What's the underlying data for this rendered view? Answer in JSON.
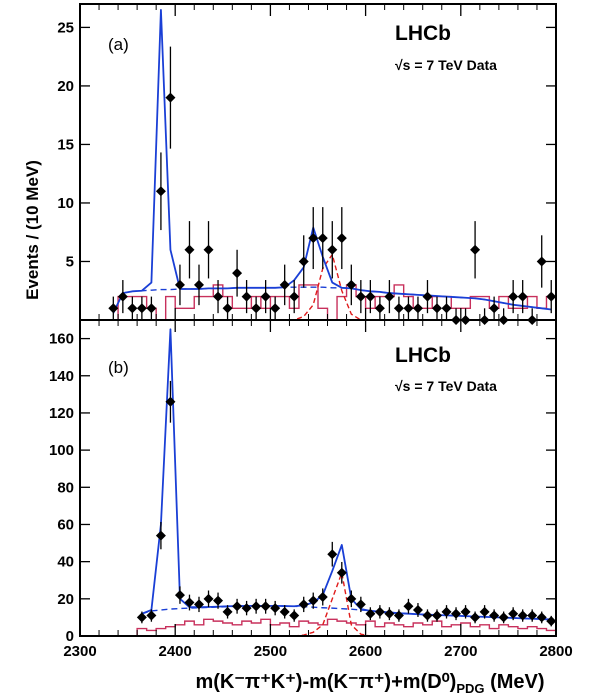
{
  "chart_data": [
    {
      "type": "scatter",
      "panel_label": "(a)",
      "experiment": "LHCb",
      "annotation": "√s = 7 TeV Data",
      "xlabel": "m(K⁻π⁺K⁺)-m(K⁻π⁺)+m(D⁰)PDG (MeV)",
      "ylabel": "Events / (10 MeV)",
      "xlim": [
        2300,
        2800
      ],
      "ylim": [
        0,
        27
      ],
      "x_ticks": [
        2300,
        2400,
        2500,
        2600,
        2700,
        2800
      ],
      "y_ticks": [
        5,
        10,
        15,
        20,
        25
      ],
      "x": [
        2335,
        2345,
        2355,
        2365,
        2375,
        2385,
        2395,
        2405,
        2415,
        2425,
        2435,
        2445,
        2455,
        2465,
        2475,
        2485,
        2495,
        2505,
        2515,
        2525,
        2535,
        2545,
        2555,
        2565,
        2575,
        2585,
        2595,
        2605,
        2615,
        2625,
        2635,
        2645,
        2655,
        2665,
        2675,
        2685,
        2695,
        2705,
        2715,
        2725,
        2735,
        2745,
        2755,
        2765,
        2775,
        2785,
        2795
      ],
      "data": [
        1,
        2,
        1,
        1,
        1,
        11,
        19,
        3,
        6,
        3,
        6,
        2,
        1,
        4,
        2,
        1,
        2,
        1,
        3,
        2,
        5,
        7,
        7,
        6,
        7,
        3,
        2,
        2,
        1,
        2,
        1,
        1,
        1,
        2,
        1,
        1,
        0,
        0,
        6,
        0,
        1,
        0,
        2,
        2,
        0,
        5,
        2
      ],
      "fit_total": [
        0.6,
        2.3,
        2.45,
        2.5,
        3.2,
        26.5,
        6,
        2.65,
        2.65,
        2.65,
        2.7,
        2.7,
        2.7,
        2.75,
        2.75,
        2.75,
        2.75,
        2.75,
        2.8,
        3.4,
        4.5,
        7.9,
        5.4,
        3.2,
        2.75,
        2.7,
        2.55,
        2.45,
        2.4,
        2.3,
        2.25,
        2.2,
        2.15,
        2.1,
        2.05,
        2.0,
        1.95,
        1.9,
        1.85,
        1.75,
        1.6,
        1.45,
        1.3,
        1.2,
        1.1,
        1.0,
        0.9
      ],
      "fit_background": [
        0.6,
        2.3,
        2.45,
        2.5,
        2.55,
        2.6,
        2.6,
        2.65,
        2.65,
        2.65,
        2.7,
        2.7,
        2.7,
        2.75,
        2.75,
        2.75,
        2.75,
        2.75,
        2.8,
        2.8,
        2.8,
        2.8,
        2.8,
        2.75,
        2.75,
        2.7,
        2.55,
        2.45,
        2.4,
        2.3,
        2.25,
        2.2,
        2.15,
        2.1,
        2.05,
        2.0,
        1.95,
        1.9,
        1.85,
        1.75,
        1.6,
        1.45,
        1.3,
        1.2,
        1.1,
        1.0,
        0.9
      ],
      "signal_2573": [
        0,
        0,
        0,
        0,
        0,
        0,
        0,
        0,
        0,
        0,
        0,
        0,
        0,
        0,
        0,
        0,
        0,
        0,
        0,
        0,
        0.3,
        1.3,
        4.4,
        5.6,
        2.5,
        0.5,
        0,
        0,
        0,
        0,
        0,
        0,
        0,
        0,
        0,
        0,
        0,
        0,
        0,
        0,
        0,
        0,
        0,
        0,
        0,
        0,
        0
      ],
      "sideband_hist": [
        0,
        2,
        2,
        2,
        1,
        0,
        2,
        1,
        1,
        2,
        2,
        3,
        2,
        1,
        1,
        2,
        1,
        2,
        2,
        1,
        3,
        3,
        1,
        0,
        2,
        3,
        2,
        1,
        2,
        2,
        3,
        2,
        1,
        1,
        2,
        2,
        1,
        1,
        2,
        2,
        1,
        2,
        1,
        1,
        2,
        1,
        2
      ],
      "colors": {
        "data": "#000000",
        "fit": "#1a3fd6",
        "signal": "#e01b1b",
        "sideband": "#c8305c"
      }
    },
    {
      "type": "scatter",
      "panel_label": "(b)",
      "experiment": "LHCb",
      "annotation": "√s = 7 TeV Data",
      "xlabel": "m(K⁻π⁺K⁺)-m(K⁻π⁺)+m(D⁰)PDG (MeV)",
      "ylabel": "Events / (10 MeV)",
      "xlim": [
        2300,
        2800
      ],
      "ylim": [
        0,
        170
      ],
      "x_ticks": [
        2300,
        2400,
        2500,
        2600,
        2700,
        2800
      ],
      "y_ticks": [
        0,
        20,
        40,
        60,
        80,
        100,
        120,
        140,
        160
      ],
      "x": [
        2365,
        2375,
        2385,
        2395,
        2405,
        2415,
        2425,
        2435,
        2445,
        2455,
        2465,
        2475,
        2485,
        2495,
        2505,
        2515,
        2525,
        2535,
        2545,
        2555,
        2565,
        2575,
        2585,
        2595,
        2605,
        2615,
        2625,
        2635,
        2645,
        2655,
        2665,
        2675,
        2685,
        2695,
        2705,
        2715,
        2725,
        2735,
        2745,
        2755,
        2765,
        2775,
        2785,
        2795
      ],
      "data": [
        10,
        11,
        54,
        126,
        22,
        18,
        17,
        20,
        19,
        13,
        16,
        15,
        16,
        16,
        15,
        13,
        11,
        17,
        19,
        21,
        44,
        34,
        20,
        17,
        12,
        13,
        12,
        11,
        16,
        14,
        11,
        11,
        13,
        12,
        13,
        10,
        13,
        11,
        10,
        12,
        11,
        11,
        10,
        8
      ],
      "fit_total": [
        12,
        14,
        60,
        165,
        20,
        15.5,
        15.5,
        15.6,
        15.8,
        16,
        16.1,
        16.2,
        16.2,
        16.2,
        16.2,
        16.1,
        16,
        16.5,
        18,
        22,
        35,
        49,
        20,
        14.5,
        13.5,
        13,
        12.6,
        12.2,
        12,
        11.7,
        11.5,
        11.3,
        11.1,
        10.9,
        10.7,
        10.5,
        10.3,
        10.1,
        9.9,
        9.7,
        9.5,
        9.3,
        9.1,
        8.9
      ],
      "fit_background": [
        12,
        13.5,
        14,
        14.5,
        14.8,
        15,
        15.2,
        15.4,
        15.6,
        15.8,
        16,
        16.1,
        16.2,
        16.2,
        16.2,
        16.1,
        16,
        15.8,
        15.5,
        15.2,
        15,
        14.7,
        14.4,
        14,
        13.6,
        13.2,
        12.8,
        12.4,
        12,
        11.7,
        11.5,
        11.3,
        11.1,
        10.9,
        10.7,
        10.5,
        10.3,
        10.1,
        9.9,
        9.7,
        9.5,
        9.3,
        9.1,
        8.9
      ],
      "signal_2573": [
        0,
        0,
        0,
        0,
        0,
        0,
        0,
        0,
        0,
        0,
        0,
        0,
        0,
        0,
        0,
        0,
        0,
        0.5,
        2,
        6,
        20,
        34,
        6,
        1,
        0,
        0,
        0,
        0,
        0,
        0,
        0,
        0,
        0,
        0,
        0,
        0,
        0,
        0,
        0,
        0,
        0,
        0,
        0,
        0
      ],
      "sideband_hist": [
        4,
        3,
        4,
        5,
        6,
        8,
        6,
        9,
        8,
        7,
        6,
        8,
        7,
        9,
        6,
        7,
        5,
        8,
        7,
        6,
        9,
        8,
        7,
        6,
        8,
        5,
        7,
        6,
        5,
        7,
        6,
        8,
        5,
        6,
        7,
        5,
        6,
        4,
        6,
        5,
        4,
        5,
        4,
        3
      ],
      "colors": {
        "data": "#000000",
        "fit": "#1a3fd6",
        "signal": "#e01b1b",
        "sideband": "#c8305c"
      }
    }
  ]
}
